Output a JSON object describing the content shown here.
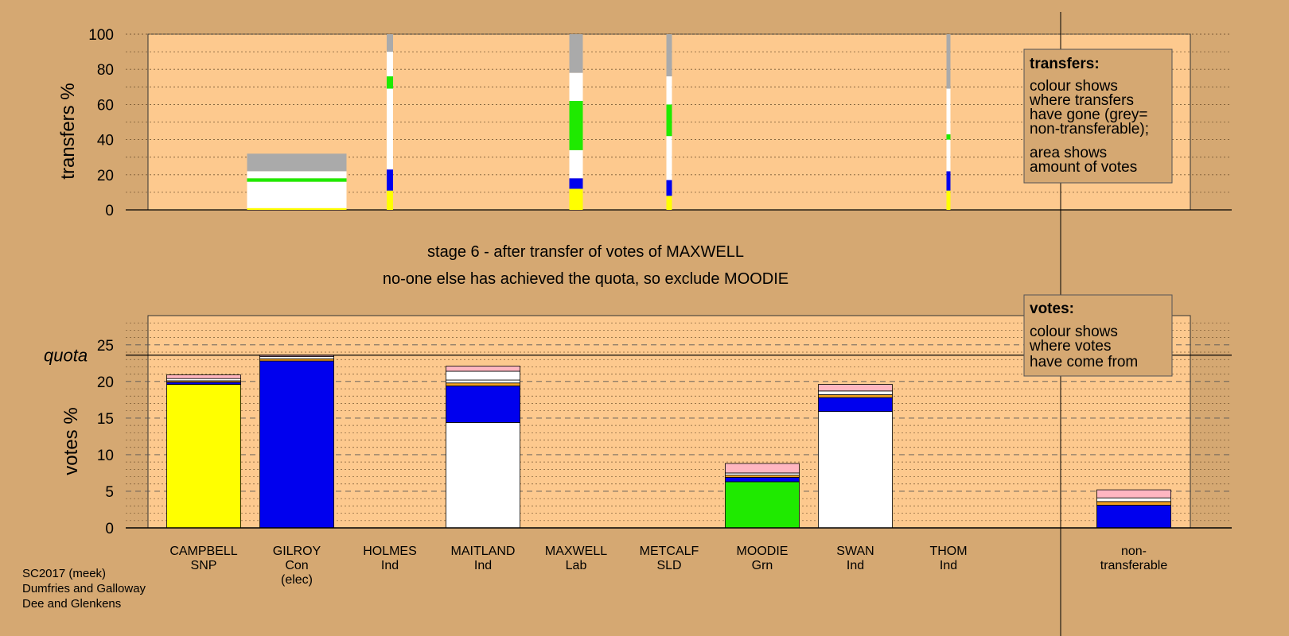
{
  "colors": {
    "background": "#d5a872",
    "plot": "#fdc98e",
    "SNP": "#ffff00",
    "Con": "#0000ee",
    "Ind": "#ffffff",
    "Grn": "#1fea00",
    "Lab": "#ff0000",
    "SLD": "#f0a020",
    "nontransferable": "#aaaaaa",
    "pink": "#ffb6c1"
  },
  "stage": {
    "line1": "stage 6 - after transfer of votes of MAXWELL",
    "line2": "no-one else has achieved the quota, so exclude MOODIE"
  },
  "footer": [
    "SC2017 (meek)",
    "Dumfries and Galloway",
    "Dee and Glenkens"
  ],
  "legend_transfers": {
    "title": "transfers:",
    "lines": [
      "colour shows",
      "where transfers",
      "have gone (grey=",
      "non-transferable);",
      "area shows",
      "amount of votes"
    ]
  },
  "legend_votes": {
    "title": "votes:",
    "lines": [
      "colour shows",
      "where votes",
      "have come from"
    ]
  },
  "chart_data": [
    {
      "type": "bar",
      "ylabel": "transfers %",
      "ylim": [
        0,
        100
      ],
      "yticks": [
        0,
        20,
        40,
        60,
        80,
        100
      ],
      "grid": true,
      "categories": [
        "GILROY",
        "HOLMES",
        "MAXWELL",
        "METCALF",
        "THOM"
      ],
      "bars": [
        {
          "candidate": "GILROY",
          "segments": [
            {
              "color": "SNP",
              "from": 0,
              "to": 1
            },
            {
              "color": "Ind",
              "from": 1,
              "to": 16
            },
            {
              "color": "Grn",
              "from": 16,
              "to": 18
            },
            {
              "color": "Ind",
              "from": 18,
              "to": 22
            },
            {
              "color": "nontransferable",
              "from": 22,
              "to": 32
            }
          ]
        },
        {
          "candidate": "HOLMES",
          "segments": [
            {
              "color": "SNP",
              "from": 0,
              "to": 11
            },
            {
              "color": "Con",
              "from": 11,
              "to": 23
            },
            {
              "color": "Ind",
              "from": 23,
              "to": 69
            },
            {
              "color": "Grn",
              "from": 69,
              "to": 76
            },
            {
              "color": "Ind",
              "from": 76,
              "to": 90
            },
            {
              "color": "nontransferable",
              "from": 90,
              "to": 100
            }
          ]
        },
        {
          "candidate": "MAXWELL",
          "segments": [
            {
              "color": "SNP",
              "from": 0,
              "to": 12
            },
            {
              "color": "Con",
              "from": 12,
              "to": 18
            },
            {
              "color": "Ind",
              "from": 18,
              "to": 34
            },
            {
              "color": "Grn",
              "from": 34,
              "to": 62
            },
            {
              "color": "Ind",
              "from": 62,
              "to": 78
            },
            {
              "color": "nontransferable",
              "from": 78,
              "to": 100
            }
          ]
        },
        {
          "candidate": "METCALF",
          "segments": [
            {
              "color": "SNP",
              "from": 0,
              "to": 8
            },
            {
              "color": "Con",
              "from": 8,
              "to": 17
            },
            {
              "color": "Ind",
              "from": 17,
              "to": 42
            },
            {
              "color": "Grn",
              "from": 42,
              "to": 60
            },
            {
              "color": "Ind",
              "from": 60,
              "to": 76
            },
            {
              "color": "nontransferable",
              "from": 76,
              "to": 100
            }
          ]
        },
        {
          "candidate": "THOM",
          "segments": [
            {
              "color": "SNP",
              "from": 0,
              "to": 11
            },
            {
              "color": "Con",
              "from": 11,
              "to": 22
            },
            {
              "color": "Ind",
              "from": 22,
              "to": 40
            },
            {
              "color": "Grn",
              "from": 40,
              "to": 43
            },
            {
              "color": "Ind",
              "from": 43,
              "to": 69
            },
            {
              "color": "nontransferable",
              "from": 69,
              "to": 100
            }
          ]
        }
      ]
    },
    {
      "type": "bar",
      "ylabel": "votes %",
      "ylim": [
        0,
        29
      ],
      "yticks": [
        0,
        5,
        10,
        15,
        20,
        25
      ],
      "grid": true,
      "quota": 23.6,
      "quota_label": "quota",
      "categories": [
        "CAMPBELL",
        "GILROY",
        "HOLMES",
        "MAITLAND",
        "MAXWELL",
        "METCALF",
        "MOODIE",
        "SWAN",
        "THOM",
        "non-transferable"
      ],
      "candidates": [
        {
          "name": "CAMPBELL",
          "party": "SNP",
          "note": "",
          "segments": [
            {
              "color": "SNP",
              "from": 0,
              "to": 19.6
            },
            {
              "color": "Con",
              "from": 19.6,
              "to": 19.9
            },
            {
              "color": "SLD",
              "from": 19.9,
              "to": 20.1
            },
            {
              "color": "Ind",
              "from": 20.1,
              "to": 20.4
            },
            {
              "color": "pink",
              "from": 20.4,
              "to": 20.9
            }
          ]
        },
        {
          "name": "GILROY",
          "party": "Con",
          "note": "(elec)",
          "segments": [
            {
              "color": "Con",
              "from": 0,
              "to": 22.8
            },
            {
              "color": "SLD",
              "from": 22.8,
              "to": 23.1
            },
            {
              "color": "Ind",
              "from": 23.1,
              "to": 23.4
            },
            {
              "color": "pink",
              "from": 23.4,
              "to": 23.6
            }
          ]
        },
        {
          "name": "HOLMES",
          "party": "Ind",
          "note": "",
          "segments": []
        },
        {
          "name": "MAITLAND",
          "party": "Ind",
          "note": "",
          "segments": [
            {
              "color": "Ind",
              "from": 0,
              "to": 14.4
            },
            {
              "color": "Con",
              "from": 14.4,
              "to": 19.4
            },
            {
              "color": "SLD",
              "from": 19.4,
              "to": 19.8
            },
            {
              "color": "Ind",
              "from": 19.8,
              "to": 20.2
            },
            {
              "color": "Ind",
              "from": 20.2,
              "to": 21.4
            },
            {
              "color": "pink",
              "from": 21.4,
              "to": 22.1
            }
          ]
        },
        {
          "name": "MAXWELL",
          "party": "Lab",
          "note": "",
          "segments": []
        },
        {
          "name": "METCALF",
          "party": "SLD",
          "note": "",
          "segments": []
        },
        {
          "name": "MOODIE",
          "party": "Grn",
          "note": "",
          "segments": [
            {
              "color": "Grn",
              "from": 0,
              "to": 6.3
            },
            {
              "color": "Con",
              "from": 6.3,
              "to": 6.9
            },
            {
              "color": "SLD",
              "from": 6.9,
              "to": 7.2
            },
            {
              "color": "Ind",
              "from": 7.2,
              "to": 7.5
            },
            {
              "color": "pink",
              "from": 7.5,
              "to": 8.8
            }
          ]
        },
        {
          "name": "SWAN",
          "party": "Ind",
          "note": "",
          "segments": [
            {
              "color": "Ind",
              "from": 0,
              "to": 15.9
            },
            {
              "color": "Con",
              "from": 15.9,
              "to": 17.8
            },
            {
              "color": "SLD",
              "from": 17.8,
              "to": 18.2
            },
            {
              "color": "Ind",
              "from": 18.2,
              "to": 18.7
            },
            {
              "color": "pink",
              "from": 18.7,
              "to": 19.6
            }
          ]
        },
        {
          "name": "THOM",
          "party": "Ind",
          "note": "",
          "segments": []
        },
        {
          "name": "non-",
          "party": "transferable",
          "note": "",
          "segments": [
            {
              "color": "Con",
              "from": 0,
              "to": 3.1
            },
            {
              "color": "SLD",
              "from": 3.1,
              "to": 3.6
            },
            {
              "color": "Ind",
              "from": 3.6,
              "to": 4.1
            },
            {
              "color": "pink",
              "from": 4.1,
              "to": 5.2
            }
          ]
        }
      ]
    }
  ]
}
